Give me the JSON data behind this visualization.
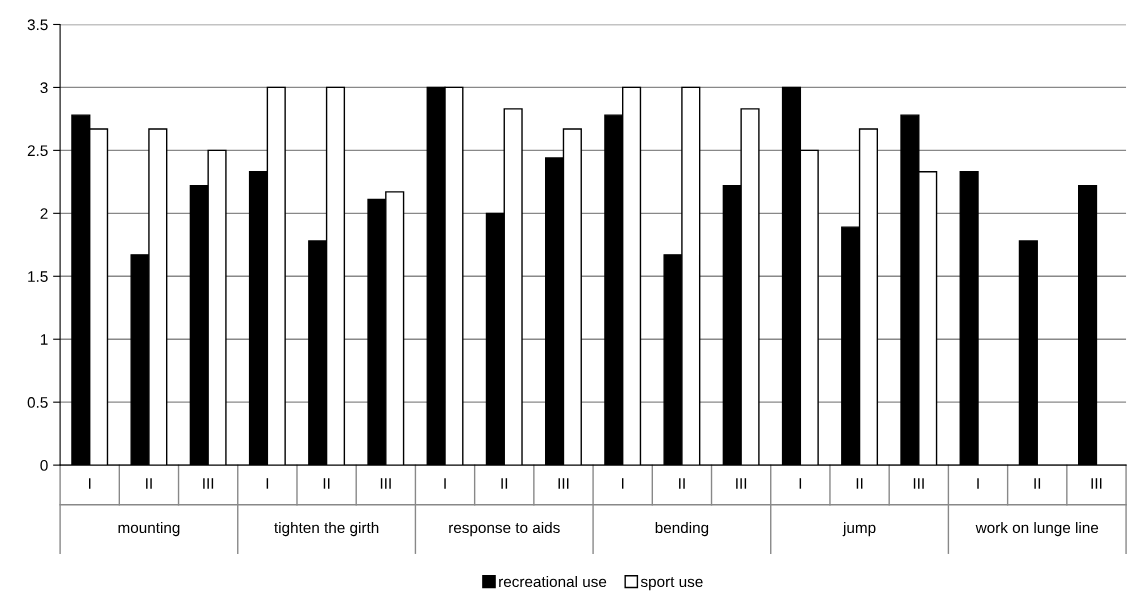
{
  "chart_data": {
    "type": "bar",
    "categories": [
      "I",
      "II",
      "III",
      "I",
      "II",
      "III",
      "I",
      "II",
      "III",
      "I",
      "II",
      "III",
      "I",
      "II",
      "III",
      "I",
      "II",
      "III"
    ],
    "annotations": [
      "mounting",
      "tighten the girth",
      "response to aids",
      "bending",
      "jump",
      "work on lunge line"
    ],
    "series": [
      {
        "name": "recreational use",
        "color": "#000000",
        "values": [
          2.78,
          1.67,
          2.22,
          2.33,
          1.78,
          2.11,
          3,
          2.0,
          2.44,
          2.78,
          1.67,
          2.22,
          3,
          1.89,
          2.78,
          2.33,
          1.78,
          2.22
        ]
      },
      {
        "name": "sport use",
        "color": "#ffffff",
        "values": [
          2.67,
          2.67,
          2.5,
          3,
          3,
          2.17,
          3,
          2.83,
          2.67,
          3,
          3,
          2.83,
          2.5,
          2.67,
          2.33,
          null,
          null,
          null
        ]
      }
    ],
    "ylim": [
      0,
      3.5
    ],
    "yticks": [
      0,
      0.5,
      1,
      1.5,
      2,
      2.5,
      3,
      3.5
    ],
    "grid": "y",
    "legend": "bottom"
  }
}
